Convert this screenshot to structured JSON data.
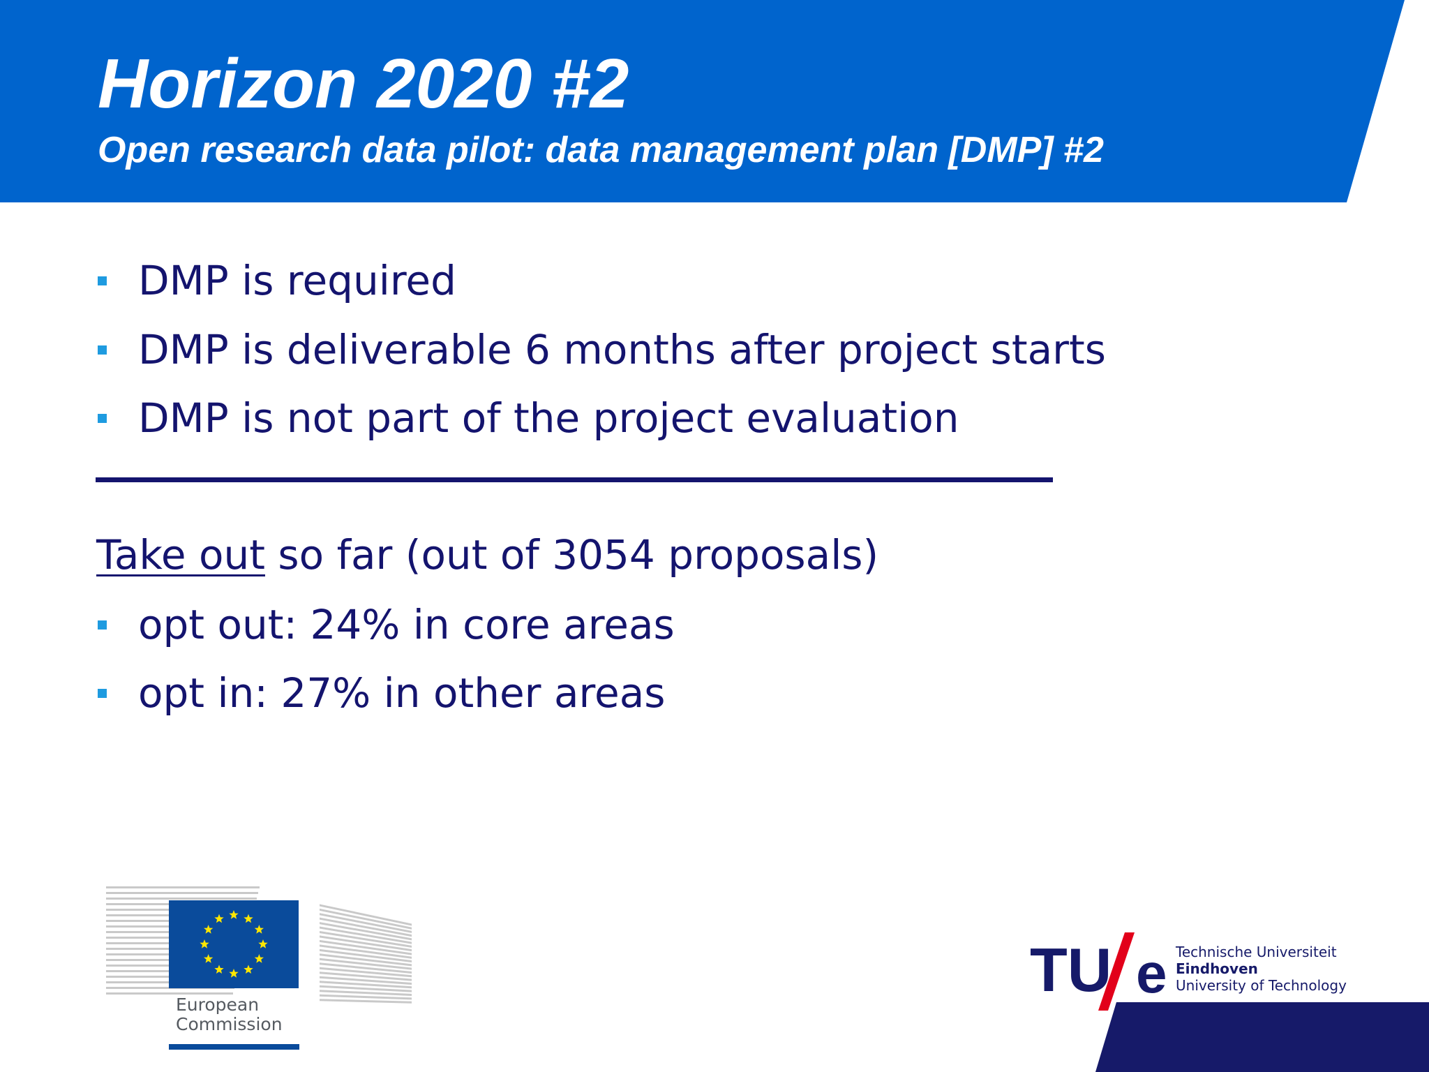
{
  "header": {
    "title": "Horizon 2020 #2",
    "subtitle": "Open research data pilot: data management plan [DMP] #2",
    "band_color": "#0064cd"
  },
  "bullets_top": [
    "DMP is required",
    "DMP is deliverable 6 months after project starts",
    "DMP is not part of the project evaluation"
  ],
  "takeout": {
    "underlined": "Take out",
    "rest": " so far (out of 3054 proposals)"
  },
  "bullets_bottom": [
    "opt out: 24% in core areas",
    "opt in: 27% in other areas"
  ],
  "logos": {
    "ec": {
      "line1": "European",
      "line2": "Commission"
    },
    "tue": {
      "mark": "TU",
      "e": "e",
      "line1": "Technische Universiteit",
      "line2": "Eindhoven",
      "line3": "University of Technology"
    }
  },
  "colors": {
    "text": "#14146e",
    "bullet": "#1e9be0",
    "tue_navy": "#161a69",
    "tue_red": "#e2001a",
    "eu_blue": "#0a4b9b",
    "eu_star": "#ffe600"
  }
}
